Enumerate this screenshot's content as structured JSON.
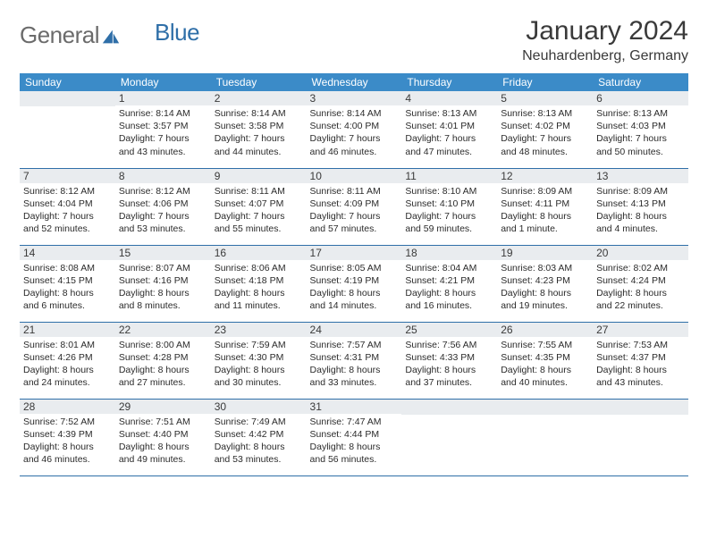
{
  "brand": {
    "part1": "General",
    "part2": "Blue"
  },
  "title": "January 2024",
  "location": "Neuhardenberg, Germany",
  "colors": {
    "header_bg": "#3b8bc8",
    "header_text": "#ffffff",
    "daynum_bg": "#e9ecef",
    "rule": "#2f6fa8",
    "body_text": "#2b2b2b",
    "title_text": "#3a3a3a",
    "brand_gray": "#6b6b6b",
    "brand_blue": "#2f6fa8",
    "page_bg": "#ffffff"
  },
  "weekdays": [
    "Sunday",
    "Monday",
    "Tuesday",
    "Wednesday",
    "Thursday",
    "Friday",
    "Saturday"
  ],
  "weeks": [
    [
      null,
      {
        "n": "1",
        "sr": "Sunrise: 8:14 AM",
        "ss": "Sunset: 3:57 PM",
        "d1": "Daylight: 7 hours",
        "d2": "and 43 minutes."
      },
      {
        "n": "2",
        "sr": "Sunrise: 8:14 AM",
        "ss": "Sunset: 3:58 PM",
        "d1": "Daylight: 7 hours",
        "d2": "and 44 minutes."
      },
      {
        "n": "3",
        "sr": "Sunrise: 8:14 AM",
        "ss": "Sunset: 4:00 PM",
        "d1": "Daylight: 7 hours",
        "d2": "and 46 minutes."
      },
      {
        "n": "4",
        "sr": "Sunrise: 8:13 AM",
        "ss": "Sunset: 4:01 PM",
        "d1": "Daylight: 7 hours",
        "d2": "and 47 minutes."
      },
      {
        "n": "5",
        "sr": "Sunrise: 8:13 AM",
        "ss": "Sunset: 4:02 PM",
        "d1": "Daylight: 7 hours",
        "d2": "and 48 minutes."
      },
      {
        "n": "6",
        "sr": "Sunrise: 8:13 AM",
        "ss": "Sunset: 4:03 PM",
        "d1": "Daylight: 7 hours",
        "d2": "and 50 minutes."
      }
    ],
    [
      {
        "n": "7",
        "sr": "Sunrise: 8:12 AM",
        "ss": "Sunset: 4:04 PM",
        "d1": "Daylight: 7 hours",
        "d2": "and 52 minutes."
      },
      {
        "n": "8",
        "sr": "Sunrise: 8:12 AM",
        "ss": "Sunset: 4:06 PM",
        "d1": "Daylight: 7 hours",
        "d2": "and 53 minutes."
      },
      {
        "n": "9",
        "sr": "Sunrise: 8:11 AM",
        "ss": "Sunset: 4:07 PM",
        "d1": "Daylight: 7 hours",
        "d2": "and 55 minutes."
      },
      {
        "n": "10",
        "sr": "Sunrise: 8:11 AM",
        "ss": "Sunset: 4:09 PM",
        "d1": "Daylight: 7 hours",
        "d2": "and 57 minutes."
      },
      {
        "n": "11",
        "sr": "Sunrise: 8:10 AM",
        "ss": "Sunset: 4:10 PM",
        "d1": "Daylight: 7 hours",
        "d2": "and 59 minutes."
      },
      {
        "n": "12",
        "sr": "Sunrise: 8:09 AM",
        "ss": "Sunset: 4:11 PM",
        "d1": "Daylight: 8 hours",
        "d2": "and 1 minute."
      },
      {
        "n": "13",
        "sr": "Sunrise: 8:09 AM",
        "ss": "Sunset: 4:13 PM",
        "d1": "Daylight: 8 hours",
        "d2": "and 4 minutes."
      }
    ],
    [
      {
        "n": "14",
        "sr": "Sunrise: 8:08 AM",
        "ss": "Sunset: 4:15 PM",
        "d1": "Daylight: 8 hours",
        "d2": "and 6 minutes."
      },
      {
        "n": "15",
        "sr": "Sunrise: 8:07 AM",
        "ss": "Sunset: 4:16 PM",
        "d1": "Daylight: 8 hours",
        "d2": "and 8 minutes."
      },
      {
        "n": "16",
        "sr": "Sunrise: 8:06 AM",
        "ss": "Sunset: 4:18 PM",
        "d1": "Daylight: 8 hours",
        "d2": "and 11 minutes."
      },
      {
        "n": "17",
        "sr": "Sunrise: 8:05 AM",
        "ss": "Sunset: 4:19 PM",
        "d1": "Daylight: 8 hours",
        "d2": "and 14 minutes."
      },
      {
        "n": "18",
        "sr": "Sunrise: 8:04 AM",
        "ss": "Sunset: 4:21 PM",
        "d1": "Daylight: 8 hours",
        "d2": "and 16 minutes."
      },
      {
        "n": "19",
        "sr": "Sunrise: 8:03 AM",
        "ss": "Sunset: 4:23 PM",
        "d1": "Daylight: 8 hours",
        "d2": "and 19 minutes."
      },
      {
        "n": "20",
        "sr": "Sunrise: 8:02 AM",
        "ss": "Sunset: 4:24 PM",
        "d1": "Daylight: 8 hours",
        "d2": "and 22 minutes."
      }
    ],
    [
      {
        "n": "21",
        "sr": "Sunrise: 8:01 AM",
        "ss": "Sunset: 4:26 PM",
        "d1": "Daylight: 8 hours",
        "d2": "and 24 minutes."
      },
      {
        "n": "22",
        "sr": "Sunrise: 8:00 AM",
        "ss": "Sunset: 4:28 PM",
        "d1": "Daylight: 8 hours",
        "d2": "and 27 minutes."
      },
      {
        "n": "23",
        "sr": "Sunrise: 7:59 AM",
        "ss": "Sunset: 4:30 PM",
        "d1": "Daylight: 8 hours",
        "d2": "and 30 minutes."
      },
      {
        "n": "24",
        "sr": "Sunrise: 7:57 AM",
        "ss": "Sunset: 4:31 PM",
        "d1": "Daylight: 8 hours",
        "d2": "and 33 minutes."
      },
      {
        "n": "25",
        "sr": "Sunrise: 7:56 AM",
        "ss": "Sunset: 4:33 PM",
        "d1": "Daylight: 8 hours",
        "d2": "and 37 minutes."
      },
      {
        "n": "26",
        "sr": "Sunrise: 7:55 AM",
        "ss": "Sunset: 4:35 PM",
        "d1": "Daylight: 8 hours",
        "d2": "and 40 minutes."
      },
      {
        "n": "27",
        "sr": "Sunrise: 7:53 AM",
        "ss": "Sunset: 4:37 PM",
        "d1": "Daylight: 8 hours",
        "d2": "and 43 minutes."
      }
    ],
    [
      {
        "n": "28",
        "sr": "Sunrise: 7:52 AM",
        "ss": "Sunset: 4:39 PM",
        "d1": "Daylight: 8 hours",
        "d2": "and 46 minutes."
      },
      {
        "n": "29",
        "sr": "Sunrise: 7:51 AM",
        "ss": "Sunset: 4:40 PM",
        "d1": "Daylight: 8 hours",
        "d2": "and 49 minutes."
      },
      {
        "n": "30",
        "sr": "Sunrise: 7:49 AM",
        "ss": "Sunset: 4:42 PM",
        "d1": "Daylight: 8 hours",
        "d2": "and 53 minutes."
      },
      {
        "n": "31",
        "sr": "Sunrise: 7:47 AM",
        "ss": "Sunset: 4:44 PM",
        "d1": "Daylight: 8 hours",
        "d2": "and 56 minutes."
      },
      null,
      null,
      null
    ]
  ]
}
